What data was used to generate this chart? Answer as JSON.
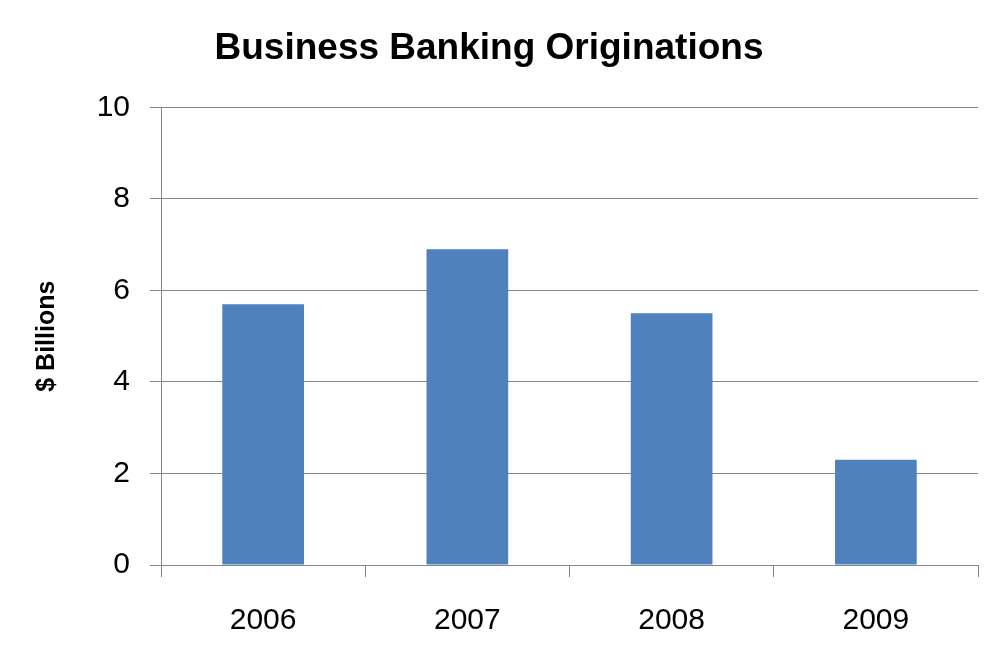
{
  "chart_data": {
    "type": "bar",
    "title": "Business Banking Originations",
    "ylabel": "$ Billions",
    "categories": [
      "2006",
      "2007",
      "2008",
      "2009"
    ],
    "values": [
      5.7,
      6.9,
      5.5,
      2.3
    ],
    "color": "#4f81bd",
    "ylim": [
      0,
      10
    ],
    "yticks": [
      0,
      2,
      4,
      6,
      8,
      10
    ],
    "grid": "y"
  }
}
